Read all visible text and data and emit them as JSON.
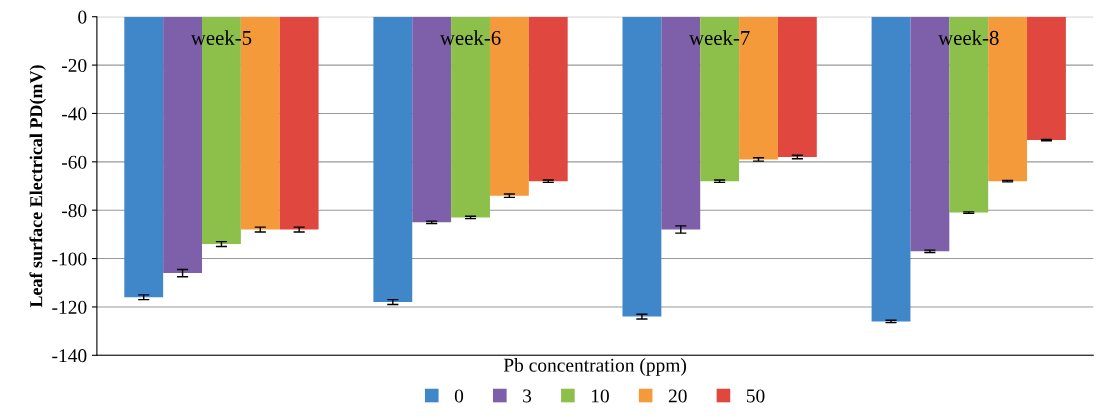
{
  "chart_data": {
    "type": "bar",
    "xlabel": "Pb concentration (ppm)",
    "ylabel": "Leaf surface Electrical PD(mV)",
    "categories": [
      "week-5",
      "week-6",
      "week-7",
      "week-8"
    ],
    "series": [
      {
        "name": "0",
        "color": "#3f87c9",
        "values": [
          -116,
          -118,
          -124,
          -126
        ],
        "errors": [
          1,
          1,
          1,
          0.5
        ]
      },
      {
        "name": "3",
        "color": "#7e5fa9",
        "values": [
          -106,
          -85,
          -88,
          -97
        ],
        "errors": [
          1.5,
          0.5,
          1.5,
          0.5
        ]
      },
      {
        "name": "10",
        "color": "#8dc04a",
        "values": [
          -94,
          -83,
          -68,
          -81
        ],
        "errors": [
          1,
          0.5,
          0.5,
          0.3
        ]
      },
      {
        "name": "20",
        "color": "#f59a3b",
        "values": [
          -88,
          -74,
          -59,
          -68
        ],
        "errors": [
          1,
          0.7,
          0.7,
          0.3
        ]
      },
      {
        "name": "50",
        "color": "#e0483f",
        "values": [
          -88,
          -68,
          -58,
          -51
        ],
        "errors": [
          1,
          0.5,
          0.7,
          0.3
        ]
      }
    ],
    "ylim": [
      -140,
      0
    ],
    "yticks": [
      -140,
      -120,
      -100,
      -80,
      -60,
      -40,
      -20,
      0
    ],
    "grid": "y",
    "legend": "bottom"
  }
}
